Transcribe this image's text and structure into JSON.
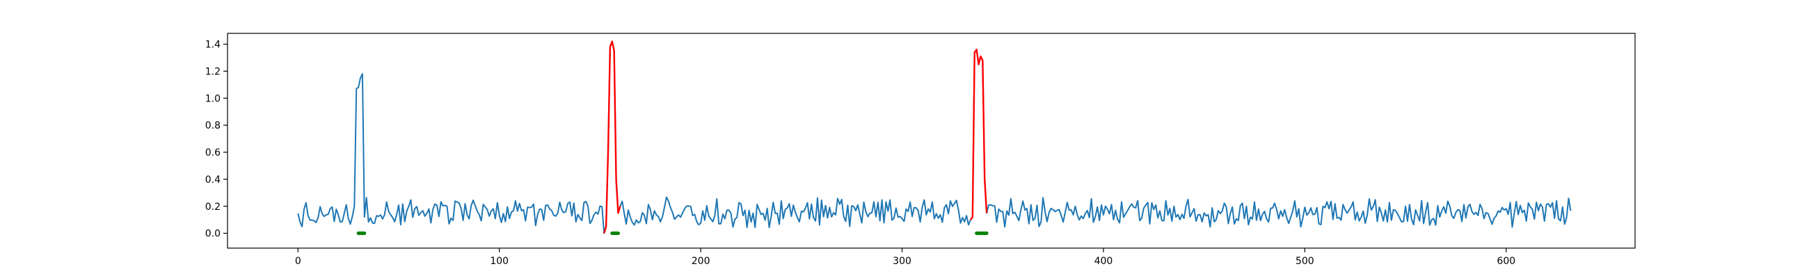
{
  "chart_data": {
    "type": "line",
    "title": "",
    "xlabel": "",
    "ylabel": "",
    "xlim": [
      -35,
      664
    ],
    "ylim": [
      -0.11,
      1.48
    ],
    "xticks": [
      0,
      100,
      200,
      300,
      400,
      500,
      600
    ],
    "xtick_labels": [
      "0",
      "100",
      "200",
      "300",
      "400",
      "500",
      "600"
    ],
    "yticks": [
      0.0,
      0.2,
      0.4,
      0.6,
      0.8,
      1.0,
      1.2,
      1.4
    ],
    "ytick_labels": [
      "0.0",
      "0.2",
      "0.4",
      "0.6",
      "0.8",
      "1.0",
      "1.2",
      "1.4"
    ],
    "grid": false,
    "x_start": 0,
    "x_end": 632,
    "noise_mean": 0.155,
    "noise_amplitude": 0.085,
    "series": [
      {
        "color": "#1f77b4",
        "role": "signal",
        "spikes": [
          {
            "x_from": 28,
            "x_to": 33,
            "values": [
              0.2,
              1.07,
              1.08,
              1.15,
              1.18,
              0.12
            ]
          }
        ]
      },
      {
        "color": "#ff0000",
        "role": "detected-anomaly",
        "segments": [
          {
            "x": [
              152,
              153,
              154,
              155,
              156,
              157,
              158,
              159,
              160
            ],
            "y": [
              0.0,
              0.05,
              0.6,
              1.38,
              1.42,
              1.35,
              0.4,
              0.15,
              0.2
            ]
          },
          {
            "x": [
              334,
              335,
              336,
              337,
              338,
              339,
              340,
              341,
              342
            ],
            "y": [
              0.1,
              0.12,
              1.34,
              1.36,
              1.25,
              1.31,
              1.28,
              0.4,
              0.15
            ]
          }
        ]
      },
      {
        "color": "#008000",
        "role": "labeled-anomaly",
        "segments": [
          {
            "x_from": 30,
            "x_to": 33,
            "y": 0.0
          },
          {
            "x_from": 156,
            "x_to": 159,
            "y": 0.0
          },
          {
            "x_from": 337,
            "x_to": 342,
            "y": 0.0
          }
        ]
      }
    ]
  }
}
